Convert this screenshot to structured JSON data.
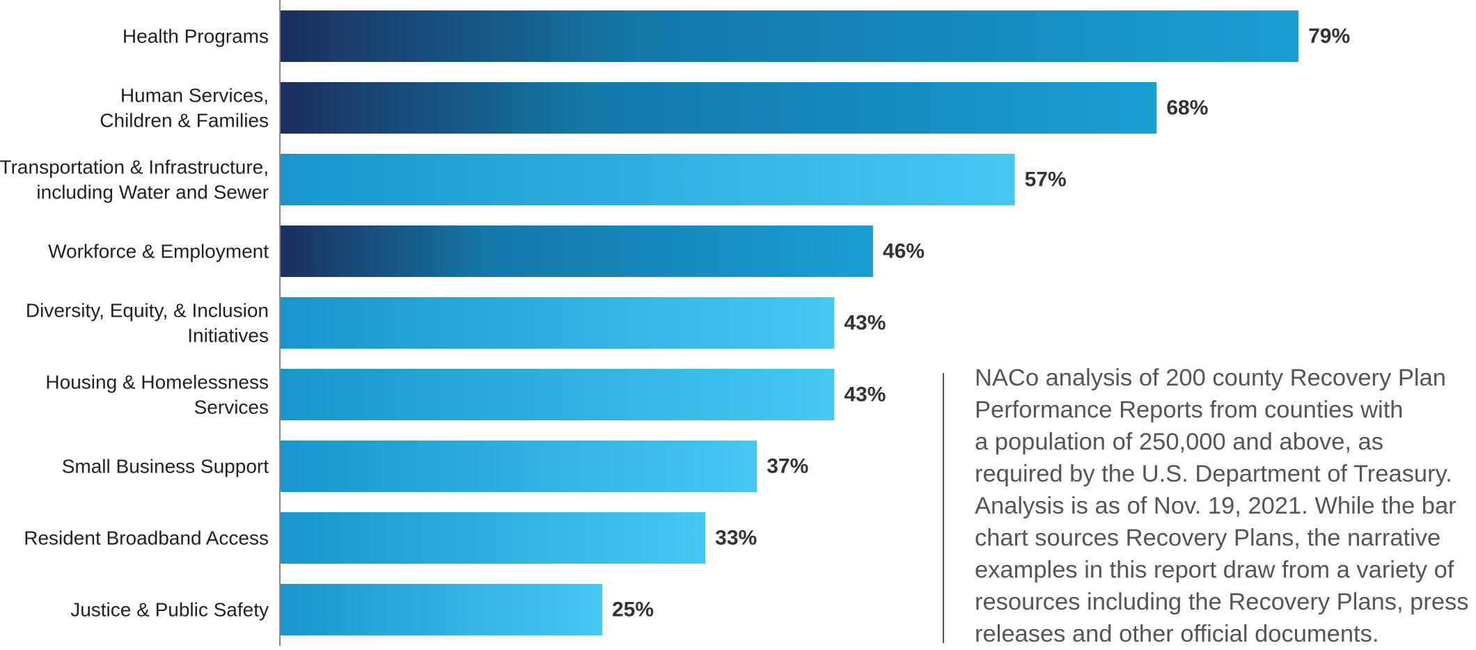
{
  "chart_data": {
    "type": "bar",
    "orientation": "horizontal",
    "title": "",
    "xlabel": "",
    "ylabel": "",
    "xlim": [
      0,
      100
    ],
    "grid": false,
    "legend": "none",
    "value_suffix": "%",
    "categories": [
      [
        "Health Programs"
      ],
      [
        "Human Services,",
        "Children & Families"
      ],
      [
        "Transportation & Infrastructure,",
        "including Water and Sewer"
      ],
      [
        "Workforce & Employment"
      ],
      [
        "Diversity, Equity, & Inclusion",
        "Initiatives"
      ],
      [
        "Housing & Homelessness",
        "Services"
      ],
      [
        "Small Business Support"
      ],
      [
        "Resident Broadband Access"
      ],
      [
        "Justice & Public Safety"
      ]
    ],
    "values": [
      79,
      68,
      57,
      46,
      43,
      43,
      37,
      33,
      25
    ],
    "bar_styles": [
      "dark",
      "dark",
      "light",
      "dark",
      "light",
      "light",
      "light",
      "light",
      "light"
    ],
    "colors": {
      "dark_start": "#1b2f5c",
      "dark_mid": "#1478a8",
      "dark_end": "#1a9fd3",
      "light_start": "#1996cc",
      "light_end": "#45c8f2",
      "axis": "#888888",
      "value_text": "#333333",
      "label_text": "#222222"
    }
  },
  "note": {
    "lines": [
      "NACo analysis of 200 county Recovery Plan",
      "Performance Reports from counties with",
      "a population of 250,000 and above, as",
      "required by the U.S. Department of Treasury.",
      "Analysis is as of Nov. 19, 2021. While the bar",
      "chart sources Recovery Plans, the narrative",
      "examples in this report draw from a variety of",
      "resources including the Recovery Plans, press",
      "releases and other official documents."
    ]
  }
}
